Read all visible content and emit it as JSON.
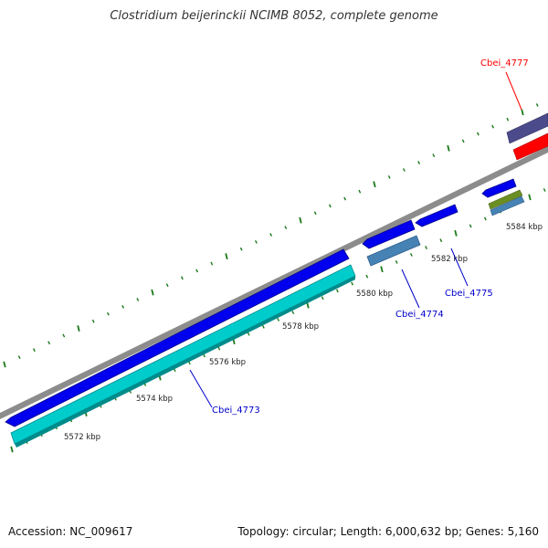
{
  "title": "Clostridium beijerinckii NCIMB 8052, complete genome",
  "footer": {
    "accession": "Accession: NC_009617",
    "summary": "Topology: circular; Length: 6,000,632 bp; Genes: 5,160"
  },
  "ticks": [
    {
      "label": "5572 kbp"
    },
    {
      "label": "5574 kbp"
    },
    {
      "label": "5576 kbp"
    },
    {
      "label": "5578 kbp"
    },
    {
      "label": "5580 kbp"
    },
    {
      "label": "5582 kbp"
    },
    {
      "label": "5584 kbp"
    }
  ],
  "genes": [
    {
      "name": "Cbei_4773",
      "color": "#0000cc"
    },
    {
      "name": "Cbei_4774",
      "color": "#0000cc"
    },
    {
      "name": "Cbei_4775",
      "color": "#0000cc"
    },
    {
      "name": "Cbei_4777",
      "color": "#ff0000"
    }
  ],
  "colors": {
    "backbone": "#8c8c8c",
    "cds_forward": "#0000ee",
    "cds_reverse": "#00cccc",
    "rna": "#4682b4",
    "feature_purple": "#4b4b8c",
    "feature_red": "#ff0000",
    "feature_olive": "#6b8e23",
    "tick": "#1a7a1a"
  }
}
